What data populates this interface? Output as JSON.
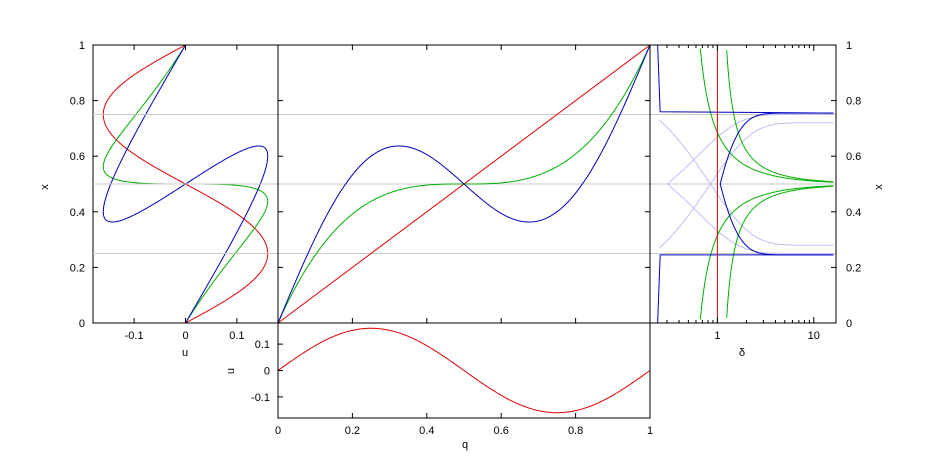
{
  "colors": {
    "red": "#e00000",
    "green": "#00b000",
    "blue": "#0000c0",
    "light_blue": "#c0c0ee",
    "ref_line": "#c8c8c8"
  },
  "chart_data": [
    {
      "id": "left",
      "type": "line",
      "xlabel": "u",
      "ylabel": "x",
      "xlim": [
        -0.18,
        0.18
      ],
      "ylim": [
        0,
        1
      ],
      "xticks": [
        {
          "v": -0.1,
          "label": "-0.1"
        },
        {
          "v": 0,
          "label": "0"
        },
        {
          "v": 0.1,
          "label": "0.1"
        }
      ],
      "yticks": [
        {
          "v": 0,
          "label": "0"
        },
        {
          "v": 0.2,
          "label": "0.2"
        },
        {
          "v": 0.4,
          "label": "0.4"
        },
        {
          "v": 0.6,
          "label": "0.6"
        },
        {
          "v": 0.8,
          "label": "0.8"
        },
        {
          "v": 1,
          "label": "1"
        }
      ],
      "series": [
        {
          "color": "red",
          "curve": "u(x) vs x, u = 0.16 sin(2πx)"
        },
        {
          "color": "green",
          "curve": "u vs x for cubic-like map"
        },
        {
          "color": "blue",
          "curve": "u vs x for oscillating map"
        }
      ]
    },
    {
      "id": "center",
      "type": "line",
      "ylabel": "",
      "xlim": [
        0,
        1
      ],
      "ylim": [
        0,
        1
      ],
      "reference_lines_y": [
        0.25,
        0.5,
        0.75
      ],
      "series": [
        {
          "color": "red",
          "points": [
            [
              0,
              0
            ],
            [
              1,
              1
            ]
          ]
        },
        {
          "color": "green",
          "curve": "x = q + 0.16 sin(2πq)·(1 − …)"
        },
        {
          "color": "blue",
          "curve": "local max 0.75 near q = 0.30, local min 0.25 near q = 0.69"
        }
      ]
    },
    {
      "id": "bottom",
      "type": "line",
      "xlabel": "q",
      "ylabel": "u",
      "xlim": [
        0,
        1
      ],
      "ylim": [
        -0.18,
        0.18
      ],
      "xticks": [
        {
          "v": 0,
          "label": "0"
        },
        {
          "v": 0.2,
          "label": "0.2"
        },
        {
          "v": 0.4,
          "label": "0.4"
        },
        {
          "v": 0.6,
          "label": "0.6"
        },
        {
          "v": 0.8,
          "label": "0.8"
        },
        {
          "v": 1,
          "label": "1"
        }
      ],
      "yticks": [
        {
          "v": 0.1,
          "label": "0.1"
        },
        {
          "v": 0,
          "label": "0"
        },
        {
          "v": -0.1,
          "label": "-0.1"
        }
      ],
      "series": [
        {
          "color": "red",
          "amplitude": 0.16,
          "curve": "u = 0.16 sin(2πq)"
        }
      ]
    },
    {
      "id": "right",
      "type": "line",
      "xlabel": "δ",
      "ylabel": "x",
      "xscale": "log",
      "xlim": [
        0.2,
        17
      ],
      "ylim": [
        0,
        1
      ],
      "xticks": [
        {
          "v": 1,
          "label": "1"
        },
        {
          "v": 10,
          "label": "10"
        }
      ],
      "yticks": [
        {
          "v": 0,
          "label": "0"
        },
        {
          "v": 0.2,
          "label": "0.2"
        },
        {
          "v": 0.4,
          "label": "0.4"
        },
        {
          "v": 0.6,
          "label": "0.6"
        },
        {
          "v": 0.8,
          "label": "0.8"
        },
        {
          "v": 1,
          "label": "1"
        }
      ],
      "series": [
        {
          "color": "red",
          "curve": "vertical line at δ = 1"
        },
        {
          "color": "green",
          "curve": "branches converging to x = 0.5"
        },
        {
          "color": "blue",
          "curve": "branches converging to x = 0.25 and 0.75"
        },
        {
          "color": "light_blue",
          "curve": "unstable branches"
        }
      ]
    }
  ]
}
